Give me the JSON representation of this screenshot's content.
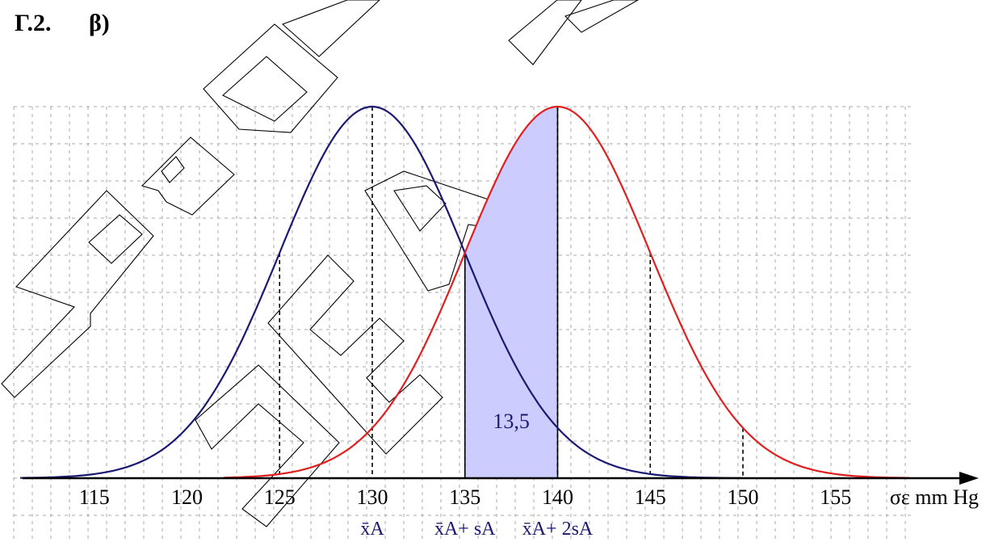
{
  "header": {
    "section": "Γ.2.",
    "part": "β)"
  },
  "watermark": {
    "text": "ΠΡΟΣΟΜΟΙΩΣΗ ΝΕΑ"
  },
  "chart_data": {
    "type": "area",
    "title": "",
    "xlabel": "σε mm Hg",
    "ylabel": "",
    "xlim": [
      110,
      160
    ],
    "xticks": [
      "115",
      "120",
      "125",
      "130",
      "135",
      "140",
      "145",
      "150",
      "155"
    ],
    "grid": true,
    "series": [
      {
        "color": "#1a1a73",
        "mean": 130,
        "sd": 5,
        "x_range": [
          111,
          150
        ]
      },
      {
        "color": "#e02020",
        "mean": 140,
        "sd": 5,
        "x_range": [
          122,
          159
        ]
      }
    ],
    "dashed_verticals": [
      125,
      130,
      135,
      140,
      145,
      150
    ],
    "shaded_region": {
      "from": 135,
      "to": 140,
      "value_label": "13,5",
      "fill": "#ccccff"
    },
    "annotations": [
      {
        "x": 130,
        "label": "x̄A"
      },
      {
        "x": 135,
        "label": "x̄A+ sA"
      },
      {
        "x": 140,
        "label": "x̄A+ 2sA"
      }
    ]
  }
}
